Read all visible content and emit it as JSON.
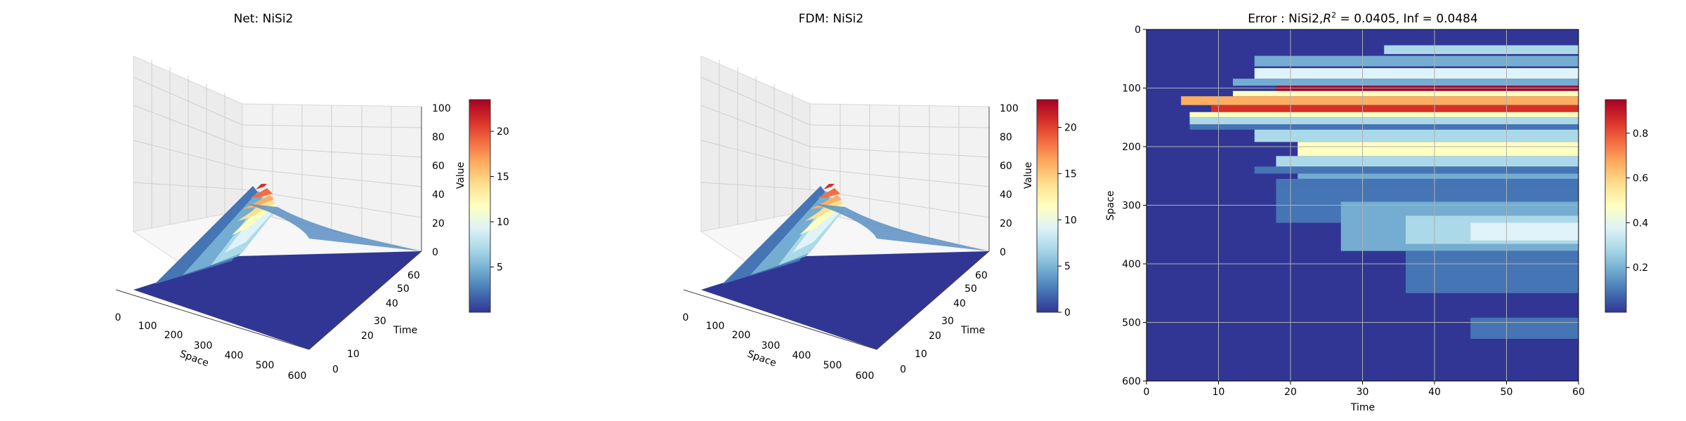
{
  "chart_data": [
    {
      "type": "surface",
      "title": "Net: NiSi2",
      "xlabel": "Space",
      "ylabel": "Time",
      "zlabel": "Value",
      "xlim": [
        0,
        600
      ],
      "ylim": [
        0,
        60
      ],
      "zlim": [
        0,
        100
      ],
      "x_ticks": [
        "0",
        "100",
        "200",
        "300",
        "400",
        "500",
        "600"
      ],
      "y_ticks": [
        "0",
        "10",
        "20",
        "30",
        "40",
        "50",
        "60"
      ],
      "z_ticks": [
        "0",
        "20",
        "40",
        "60",
        "80",
        "100"
      ],
      "colormap": "RdYlBu_r",
      "colorbar": {
        "range": [
          0,
          23.5
        ],
        "ticks": [
          "5",
          "10",
          "15",
          "20"
        ]
      },
      "peak": {
        "value": 23.5,
        "time": 60,
        "space": 100
      },
      "grid": true
    },
    {
      "type": "surface",
      "title": "FDM: NiSi2",
      "xlabel": "Space",
      "ylabel": "Time",
      "zlabel": "Value",
      "xlim": [
        0,
        600
      ],
      "ylim": [
        0,
        60
      ],
      "zlim": [
        0,
        100
      ],
      "x_ticks": [
        "0",
        "100",
        "200",
        "300",
        "400",
        "500",
        "600"
      ],
      "y_ticks": [
        "0",
        "10",
        "20",
        "30",
        "40",
        "50",
        "60"
      ],
      "z_ticks": [
        "0",
        "20",
        "40",
        "60",
        "80",
        "100"
      ],
      "colormap": "RdYlBu_r",
      "colorbar": {
        "range": [
          0,
          23
        ],
        "ticks": [
          "0",
          "5",
          "10",
          "15",
          "20"
        ]
      },
      "peak": {
        "value": 23,
        "time": 60,
        "space": 100
      },
      "grid": true
    },
    {
      "type": "heatmap",
      "title_main": "Error : NiSi2,",
      "title_r": "R",
      "title_sup": "2",
      "title_rest": " = 0.0405, Inf = 0.0484",
      "xlabel": "Time",
      "ylabel": "Space",
      "xlim": [
        0,
        60
      ],
      "ylim": [
        600,
        0
      ],
      "x_ticks": [
        "0",
        "10",
        "20",
        "30",
        "40",
        "50",
        "60"
      ],
      "y_ticks": [
        "0",
        "100",
        "200",
        "300",
        "400",
        "500",
        "600"
      ],
      "colormap": "RdYlBu_r",
      "colorbar": {
        "range": [
          0,
          0.95
        ],
        "ticks": [
          "0.2",
          "0.4",
          "0.6",
          "0.8"
        ]
      },
      "grid": true
    }
  ]
}
